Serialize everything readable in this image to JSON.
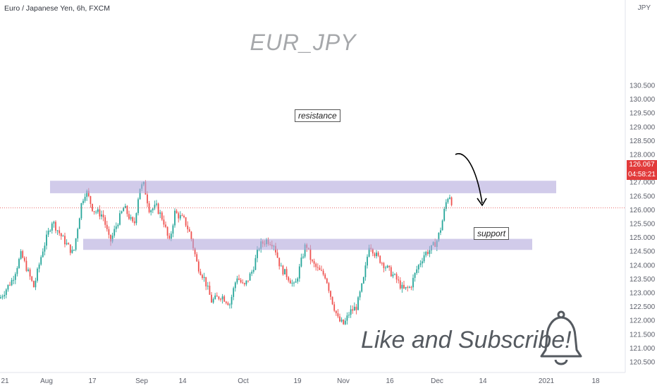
{
  "header": {
    "symbol_title": "Euro / Japanese Yen, 6h, FXCM",
    "currency": "JPY"
  },
  "watermark": "EUR_JPY",
  "annotations": {
    "resistance_label": "resistance",
    "support_label": "support",
    "cta": "Like and Subscribe!"
  },
  "price_axis": {
    "labels": [
      "130.500",
      "130.000",
      "129.500",
      "129.000",
      "128.500",
      "128.000",
      "127.500",
      "127.000",
      "126.500",
      "126.000",
      "125.500",
      "125.000",
      "124.500",
      "124.000",
      "123.500",
      "123.000",
      "122.500",
      "122.000",
      "121.500",
      "121.000",
      "120.500"
    ],
    "current_price": "126.067",
    "countdown": "04:58:21"
  },
  "time_axis": {
    "labels": [
      "21",
      "Aug",
      "17",
      "Sep",
      "14",
      "Oct",
      "19",
      "Nov",
      "16",
      "Dec",
      "14",
      "2021",
      "18"
    ]
  },
  "colors": {
    "up": "#26a69a",
    "down": "#ef5350",
    "zone": "#b3a9dc",
    "price_tag": "#e23b3b",
    "watermark": "#a6a8ab"
  },
  "icons": {
    "bell": "bell-icon",
    "arrow": "curved-arrow-icon"
  },
  "chart_data": {
    "type": "candlestick",
    "title": "Euro / Japanese Yen, 6h, FXCM",
    "ylim": [
      120.2,
      130.9
    ],
    "y_ticks": [
      130.5,
      130.0,
      129.5,
      129.0,
      128.5,
      128.0,
      127.5,
      127.0,
      126.5,
      126.0,
      125.5,
      125.0,
      124.5,
      124.0,
      123.5,
      123.0,
      122.5,
      122.0,
      121.5,
      121.0,
      120.5
    ],
    "x_labels": [
      "21",
      "Aug",
      "17",
      "Sep",
      "14",
      "Oct",
      "19",
      "Nov",
      "16",
      "Dec",
      "14",
      "2021",
      "18"
    ],
    "resistance_zone": [
      126.6,
      127.05
    ],
    "support_zone": [
      124.55,
      124.95
    ],
    "last_price": 126.067,
    "close_path": [
      [
        0,
        122.8
      ],
      [
        18,
        123.5
      ],
      [
        30,
        124.4
      ],
      [
        48,
        123.2
      ],
      [
        60,
        124.5
      ],
      [
        74,
        125.6
      ],
      [
        88,
        125.0
      ],
      [
        104,
        124.4
      ],
      [
        116,
        126.3
      ],
      [
        122,
        126.7
      ],
      [
        132,
        126.0
      ],
      [
        146,
        125.8
      ],
      [
        156,
        124.8
      ],
      [
        166,
        125.5
      ],
      [
        176,
        126.1
      ],
      [
        190,
        125.4
      ],
      [
        198,
        126.8
      ],
      [
        204,
        126.9
      ],
      [
        212,
        126.0
      ],
      [
        222,
        126.1
      ],
      [
        232,
        125.6
      ],
      [
        240,
        124.8
      ],
      [
        248,
        125.9
      ],
      [
        262,
        125.6
      ],
      [
        270,
        125.1
      ],
      [
        280,
        124.0
      ],
      [
        290,
        123.5
      ],
      [
        300,
        122.7
      ],
      [
        314,
        122.9
      ],
      [
        326,
        122.6
      ],
      [
        336,
        123.6
      ],
      [
        346,
        123.2
      ],
      [
        358,
        123.8
      ],
      [
        368,
        124.7
      ],
      [
        378,
        124.9
      ],
      [
        388,
        124.8
      ],
      [
        398,
        123.9
      ],
      [
        408,
        123.6
      ],
      [
        418,
        123.2
      ],
      [
        428,
        124.2
      ],
      [
        434,
        124.8
      ],
      [
        442,
        124.1
      ],
      [
        452,
        123.8
      ],
      [
        462,
        123.6
      ],
      [
        470,
        122.8
      ],
      [
        480,
        122.0
      ],
      [
        488,
        121.85
      ],
      [
        496,
        122.3
      ],
      [
        506,
        122.5
      ],
      [
        516,
        123.5
      ],
      [
        524,
        124.8
      ],
      [
        532,
        124.4
      ],
      [
        542,
        124.1
      ],
      [
        552,
        123.8
      ],
      [
        562,
        123.5
      ],
      [
        572,
        123.1
      ],
      [
        582,
        123.2
      ],
      [
        592,
        123.9
      ],
      [
        602,
        124.4
      ],
      [
        612,
        124.6
      ],
      [
        620,
        124.9
      ],
      [
        626,
        125.4
      ],
      [
        632,
        126.2
      ],
      [
        637,
        126.6
      ],
      [
        643,
        126.1
      ]
    ]
  }
}
